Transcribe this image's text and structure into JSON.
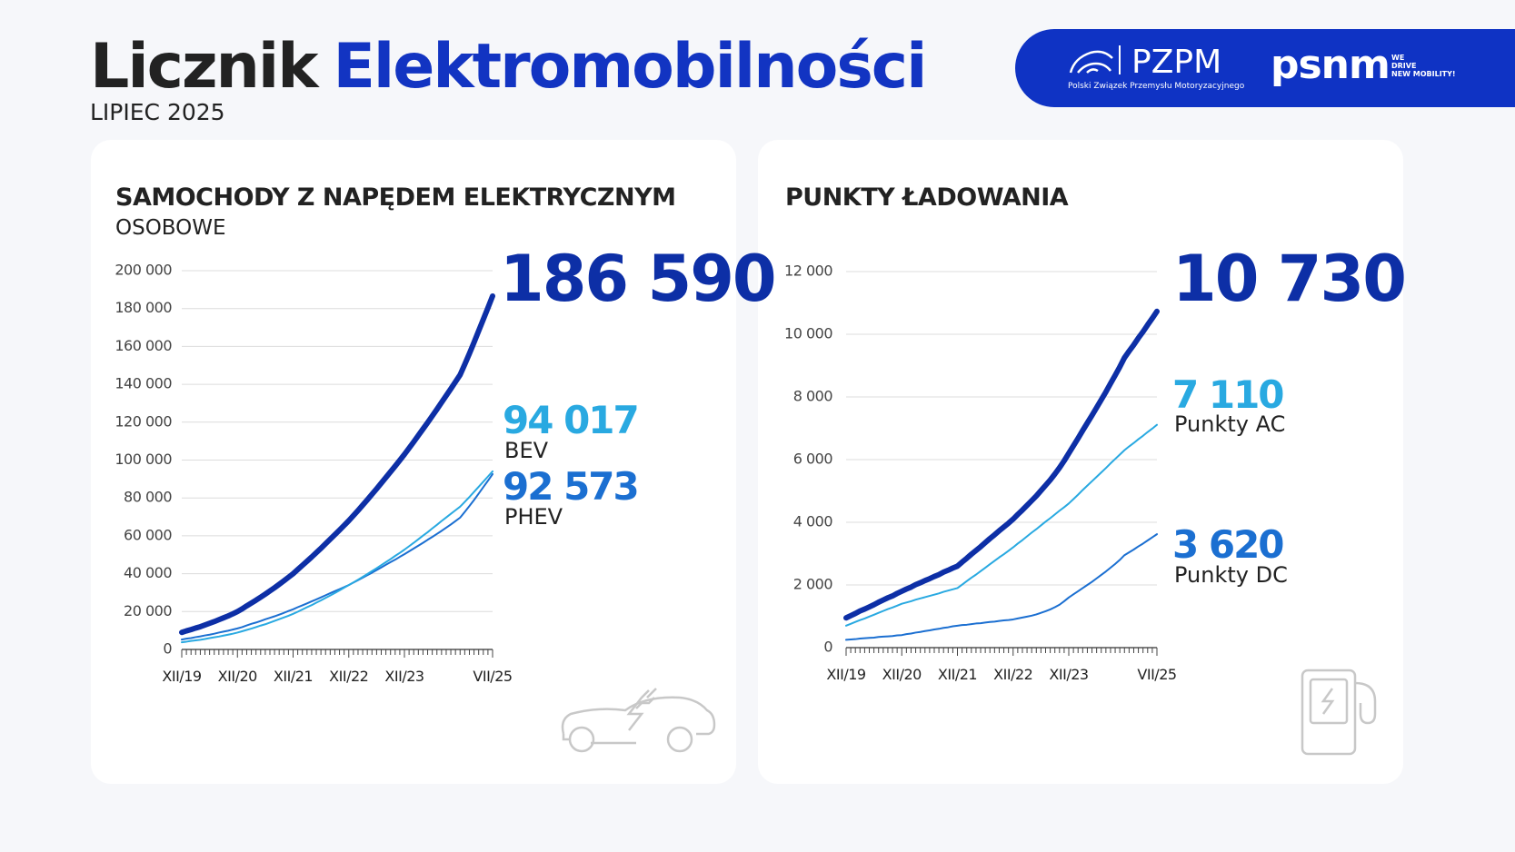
{
  "header": {
    "title_1": "Licznik",
    "title_2": "Elektromobilności",
    "subtitle": "LIPIEC 2025",
    "logo_pzpm": "PZPM",
    "logo_pzpm_caption": "Polski Związek Przemysłu Motoryzacyjnego",
    "logo_psnm": "psnm",
    "logo_psnm_tagline": [
      "WE",
      "DRIVE",
      "NEW MOBILITY!"
    ]
  },
  "chart_data": [
    {
      "type": "line",
      "title": "SAMOCHODY Z NAPĘDEM ELEKTRYCZNYM",
      "subtitle": "OSOBOWE",
      "categories": [
        "XII/19",
        null,
        null,
        null,
        null,
        null,
        null,
        null,
        null,
        null,
        null,
        null,
        "XII/20",
        null,
        null,
        null,
        null,
        null,
        null,
        null,
        null,
        null,
        null,
        null,
        "XII/21",
        null,
        null,
        null,
        null,
        null,
        null,
        null,
        null,
        null,
        null,
        null,
        "XII/22",
        null,
        null,
        null,
        null,
        null,
        null,
        null,
        null,
        null,
        null,
        null,
        "XII/23",
        null,
        null,
        null,
        null,
        null,
        null,
        null,
        null,
        null,
        null,
        null,
        null,
        null,
        null,
        null,
        null,
        null,
        null,
        "VII/25"
      ],
      "series": [
        {
          "color": "#0d2fa6",
          "line_width": 6,
          "end_label": "186 590",
          "values": [
            9000,
            9800,
            10500,
            11300,
            12000,
            12900,
            13800,
            14700,
            15700,
            16700,
            17700,
            18800,
            20000,
            21400,
            23000,
            24500,
            26000,
            27600,
            29200,
            30900,
            32600,
            34400,
            36200,
            38100,
            40000,
            42200,
            44400,
            46600,
            48800,
            51100,
            53400,
            55800,
            58200,
            60600,
            63000,
            65500,
            68000,
            70700,
            73400,
            76200,
            79000,
            81900,
            84800,
            87800,
            90800,
            93800,
            96800,
            99900,
            103000,
            106300,
            109600,
            113000,
            116400,
            119800,
            123300,
            126800,
            130400,
            134000,
            137600,
            141300,
            145000,
            150500,
            156200,
            162100,
            168200,
            174300,
            180400,
            186590
          ]
        },
        {
          "name": "BEV",
          "color": "#29a9e1",
          "line_width": 2,
          "end_label": "94 017",
          "values": [
            3800,
            4100,
            4500,
            4800,
            5100,
            5500,
            6000,
            6400,
            6800,
            7300,
            7800,
            8300,
            8900,
            9600,
            10300,
            11000,
            11800,
            12600,
            13300,
            14200,
            15100,
            16000,
            16900,
            17800,
            18800,
            19900,
            21100,
            22300,
            23400,
            24700,
            25900,
            27200,
            28500,
            29800,
            31200,
            32600,
            34000,
            35400,
            36800,
            38300,
            39800,
            41400,
            42900,
            44500,
            46100,
            47700,
            49400,
            51000,
            52700,
            54500,
            56300,
            58200,
            60100,
            61900,
            63900,
            65800,
            67800,
            69700,
            71600,
            73500,
            75400,
            77900,
            80500,
            83200,
            85900,
            88600,
            91300,
            94017
          ]
        },
        {
          "name": "PHEV",
          "color": "#1b6fd1",
          "line_width": 2,
          "end_label": "92 573",
          "values": [
            5200,
            5700,
            6000,
            6500,
            6900,
            7400,
            7800,
            8300,
            8900,
            9400,
            9900,
            10500,
            11100,
            11800,
            12700,
            13500,
            14200,
            15000,
            15900,
            16700,
            17500,
            18400,
            19300,
            20300,
            21200,
            22300,
            23300,
            24300,
            25400,
            26400,
            27500,
            28600,
            29700,
            30800,
            31800,
            32900,
            34000,
            35300,
            36600,
            37900,
            39200,
            40500,
            41900,
            43300,
            44700,
            46100,
            47400,
            48900,
            50300,
            51800,
            53300,
            54800,
            56300,
            57900,
            59400,
            61000,
            62600,
            64300,
            66000,
            67800,
            69600,
            72600,
            75700,
            78900,
            82300,
            85700,
            89100,
            92573
          ]
        }
      ],
      "ylim": [
        0,
        200000
      ],
      "yticks": [
        0,
        {
          "value": 20000,
          "label": "20 000"
        },
        {
          "value": 40000,
          "label": "40 000"
        },
        {
          "value": 60000,
          "label": "60 000"
        },
        {
          "value": 80000,
          "label": "80 000"
        },
        {
          "value": 100000,
          "label": "100 000"
        },
        {
          "value": 120000,
          "label": "120 000"
        },
        {
          "value": 140000,
          "label": "140 000"
        },
        {
          "value": 160000,
          "label": "160 000"
        },
        {
          "value": 180000,
          "label": "180 000"
        },
        {
          "value": 200000,
          "label": "200 000"
        }
      ],
      "grid": true
    },
    {
      "type": "line",
      "title": "PUNKTY ŁADOWANIA",
      "categories": [
        "XII/19",
        null,
        null,
        null,
        null,
        null,
        null,
        null,
        null,
        null,
        null,
        null,
        "XII/20",
        null,
        null,
        null,
        null,
        null,
        null,
        null,
        null,
        null,
        null,
        null,
        "XII/21",
        null,
        null,
        null,
        null,
        null,
        null,
        null,
        null,
        null,
        null,
        null,
        "XII/22",
        null,
        null,
        null,
        null,
        null,
        null,
        null,
        null,
        null,
        null,
        null,
        "XII/23",
        null,
        null,
        null,
        null,
        null,
        null,
        null,
        null,
        null,
        null,
        null,
        null,
        null,
        null,
        null,
        null,
        null,
        null,
        "VII/25"
      ],
      "series": [
        {
          "color": "#0d2fa6",
          "line_width": 6,
          "end_label": "10 730",
          "values": [
            950,
            1020,
            1090,
            1170,
            1230,
            1300,
            1370,
            1450,
            1520,
            1590,
            1650,
            1730,
            1800,
            1870,
            1930,
            2010,
            2070,
            2140,
            2200,
            2270,
            2330,
            2410,
            2470,
            2540,
            2600,
            2730,
            2850,
            2980,
            3100,
            3220,
            3350,
            3480,
            3600,
            3730,
            3850,
            3970,
            4100,
            4250,
            4390,
            4540,
            4690,
            4840,
            5010,
            5180,
            5350,
            5540,
            5740,
            5960,
            6200,
            6440,
            6680,
            6930,
            7170,
            7410,
            7660,
            7910,
            8160,
            8430,
            8690,
            8960,
            9250,
            9460,
            9660,
            9880,
            10080,
            10300,
            10510,
            10730
          ]
        },
        {
          "name": "Punkty AC",
          "color": "#29a9e1",
          "line_width": 2,
          "end_label": "7 110",
          "values": [
            700,
            760,
            820,
            880,
            930,
            990,
            1050,
            1110,
            1170,
            1230,
            1280,
            1340,
            1400,
            1440,
            1480,
            1530,
            1570,
            1610,
            1650,
            1690,
            1730,
            1780,
            1820,
            1860,
            1900,
            2010,
            2120,
            2230,
            2330,
            2440,
            2550,
            2660,
            2770,
            2880,
            2980,
            3090,
            3200,
            3320,
            3430,
            3550,
            3670,
            3780,
            3900,
            4020,
            4130,
            4250,
            4370,
            4480,
            4600,
            4740,
            4880,
            5030,
            5170,
            5310,
            5450,
            5590,
            5730,
            5880,
            6020,
            6160,
            6300,
            6420,
            6530,
            6650,
            6760,
            6880,
            6990,
            7110
          ]
        },
        {
          "name": "Punkty DC",
          "color": "#1b6fd1",
          "line_width": 2,
          "end_label": "3 620",
          "values": [
            250,
            260,
            270,
            290,
            300,
            310,
            320,
            340,
            350,
            360,
            370,
            390,
            400,
            430,
            450,
            480,
            500,
            530,
            550,
            580,
            600,
            630,
            650,
            680,
            700,
            720,
            730,
            750,
            770,
            780,
            800,
            820,
            830,
            850,
            870,
            880,
            900,
            930,
            960,
            990,
            1020,
            1060,
            1110,
            1160,
            1220,
            1290,
            1370,
            1480,
            1600,
            1700,
            1800,
            1900,
            2000,
            2100,
            2210,
            2320,
            2430,
            2550,
            2670,
            2800,
            2950,
            3040,
            3130,
            3230,
            3320,
            3420,
            3520,
            3620
          ]
        }
      ],
      "ylim": [
        0,
        12000
      ],
      "yticks": [
        0,
        {
          "value": 2000,
          "label": "2 000"
        },
        {
          "value": 4000,
          "label": "4 000"
        },
        {
          "value": 6000,
          "label": "6 000"
        },
        {
          "value": 8000,
          "label": "8 000"
        },
        {
          "value": 10000,
          "label": "10 000"
        },
        {
          "value": 12000,
          "label": "12 000"
        }
      ],
      "grid": true
    }
  ]
}
